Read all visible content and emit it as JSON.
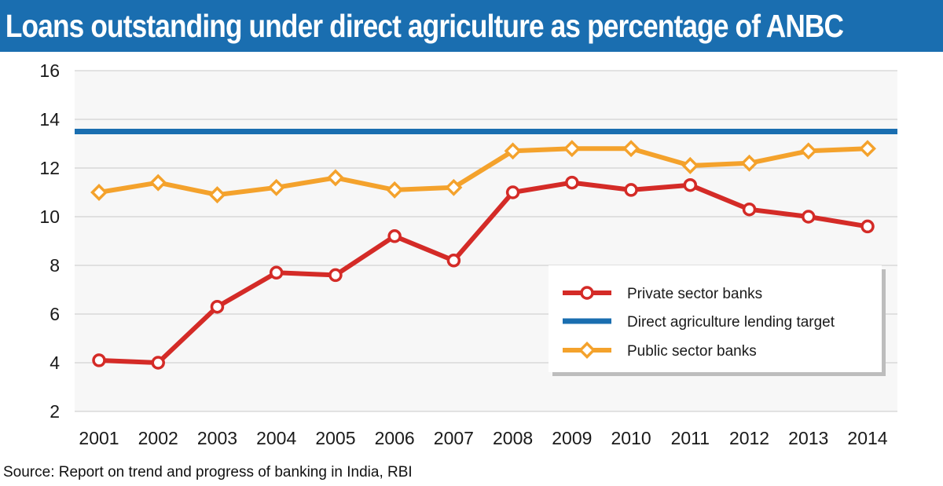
{
  "title": "Loans outstanding under direct agriculture as percentage of ANBC",
  "source": "Source: Report on trend and progress of banking in India, RBI",
  "colors": {
    "title_bg": "#1a6eb0",
    "private": "#d42b27",
    "target": "#1a6eb0",
    "public": "#f4a22c",
    "gridline": "#c8c8c8",
    "plot_bg": "#f7f7f7"
  },
  "chart_data": {
    "type": "line",
    "x": [
      "2001",
      "2002",
      "2003",
      "2004",
      "2005",
      "2006",
      "2007",
      "2008",
      "2009",
      "2010",
      "2011",
      "2012",
      "2013",
      "2014"
    ],
    "ylim": [
      2,
      16
    ],
    "yticks": [
      16,
      14,
      12,
      10,
      8,
      6,
      4,
      2
    ],
    "grid": "horizontal",
    "legend_position": "lower-right",
    "series": [
      {
        "name": "Private sector banks",
        "marker": "circle",
        "color": "#d42b27",
        "values": [
          4.1,
          4.0,
          6.3,
          7.7,
          7.6,
          9.2,
          8.2,
          11.0,
          11.4,
          11.1,
          11.3,
          10.3,
          10.0,
          9.6
        ]
      },
      {
        "name": "Direct agriculture lending target",
        "marker": "none",
        "color": "#1a6eb0",
        "values": [
          13.5,
          13.5,
          13.5,
          13.5,
          13.5,
          13.5,
          13.5,
          13.5,
          13.5,
          13.5,
          13.5,
          13.5,
          13.5,
          13.5
        ]
      },
      {
        "name": "Public sector banks",
        "marker": "diamond",
        "color": "#f4a22c",
        "values": [
          11.0,
          11.4,
          10.9,
          11.2,
          11.6,
          11.1,
          11.2,
          12.7,
          12.8,
          12.8,
          12.1,
          12.2,
          12.7,
          12.8
        ]
      }
    ]
  }
}
